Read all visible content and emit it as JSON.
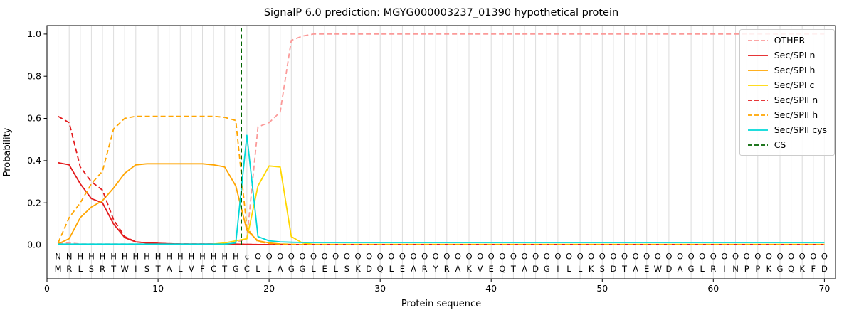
{
  "chart_data": {
    "type": "line",
    "title": "SignalP 6.0 prediction: MGYG000003237_01390 hypothetical protein",
    "xlabel": "Protein sequence",
    "ylabel": "Probability",
    "xlim": [
      0,
      71
    ],
    "ylim": [
      -0.16,
      1.04
    ],
    "xticks": [
      0,
      10,
      20,
      30,
      40,
      50,
      60,
      70
    ],
    "yticks": [
      0.0,
      0.2,
      0.4,
      0.6,
      0.8,
      1.0
    ],
    "grid": "vertical-per-residue",
    "grid_color": "#dcdcdc",
    "legend_position": "upper-right",
    "sequence": "MRLSRTWISTALVFCTGCLLAGGLELSKDQLEARYRAKVEQTADGILLKSDTAEWDAGLRINPPKGQKFD",
    "sequence_color": "#1a1a1a",
    "sequence_y": -0.112,
    "region_annotation": "NNHHHHHHHHHHHHHHHcOOOOOOOOOOOOOOOOOOOOOOOOOOOOOOOOOOOOOOOOOOOOOOOOOOOO",
    "annotation_y": -0.053,
    "annotation_colors": {
      "N": "#e31a1c",
      "H": "#ffa500",
      "c": "#00d8d8",
      "O": "#a0a0a0"
    },
    "cs": {
      "label": "CS",
      "position": 17.5,
      "color": "#006400"
    },
    "series": [
      {
        "name": "OTHER",
        "color": "#fb9a99",
        "dash": true,
        "values": [
          0.01,
          0.01,
          0.005,
          0.005,
          0.005,
          0.005,
          0.005,
          0.005,
          0.005,
          0.005,
          0.005,
          0.005,
          0.005,
          0.005,
          0.005,
          0.005,
          0.01,
          0.03,
          0.56,
          0.58,
          0.63,
          0.97,
          0.99,
          1.0,
          1.0,
          1.0,
          1.0,
          1.0,
          1.0,
          1.0,
          1.0,
          1.0,
          1.0,
          1.0,
          1.0,
          1.0,
          1.0,
          1.0,
          1.0,
          1.0,
          1.0,
          1.0,
          1.0,
          1.0,
          1.0,
          1.0,
          1.0,
          1.0,
          1.0,
          1.0,
          1.0,
          1.0,
          1.0,
          1.0,
          1.0,
          1.0,
          1.0,
          1.0,
          1.0,
          1.0,
          1.0,
          1.0,
          1.0,
          1.0,
          1.0,
          1.0,
          1.0,
          1.0,
          1.0,
          1.0
        ]
      },
      {
        "name": "Sec/SPI n",
        "color": "#e31a1c",
        "dash": false,
        "values": [
          0.39,
          0.38,
          0.29,
          0.22,
          0.2,
          0.1,
          0.035,
          0.015,
          0.01,
          0.008,
          0.006,
          0.005,
          0.005,
          0.005,
          0.005,
          0.005,
          0.004,
          0.003,
          0.002,
          0.002,
          0.002,
          0.002,
          0.002,
          0.002,
          0.002,
          0.002,
          0.002,
          0.002,
          0.002,
          0.002,
          0.002,
          0.002,
          0.002,
          0.002,
          0.002,
          0.002,
          0.002,
          0.002,
          0.002,
          0.002,
          0.002,
          0.002,
          0.002,
          0.002,
          0.002,
          0.002,
          0.002,
          0.002,
          0.002,
          0.002,
          0.002,
          0.002,
          0.002,
          0.002,
          0.002,
          0.002,
          0.002,
          0.002,
          0.002,
          0.002,
          0.002,
          0.002,
          0.002,
          0.002,
          0.002,
          0.002,
          0.002,
          0.002,
          0.002,
          0.002
        ]
      },
      {
        "name": "Sec/SPI h",
        "color": "#ffa500",
        "dash": false,
        "values": [
          0.005,
          0.03,
          0.13,
          0.18,
          0.21,
          0.27,
          0.34,
          0.38,
          0.385,
          0.385,
          0.385,
          0.385,
          0.385,
          0.385,
          0.38,
          0.37,
          0.28,
          0.07,
          0.02,
          0.01,
          0.005,
          0.003,
          0.002,
          0.002,
          0.002,
          0.002,
          0.002,
          0.002,
          0.002,
          0.002,
          0.002,
          0.002,
          0.002,
          0.002,
          0.002,
          0.002,
          0.002,
          0.002,
          0.002,
          0.002,
          0.002,
          0.002,
          0.002,
          0.002,
          0.002,
          0.002,
          0.002,
          0.002,
          0.002,
          0.002,
          0.002,
          0.002,
          0.002,
          0.002,
          0.002,
          0.002,
          0.002,
          0.002,
          0.002,
          0.002,
          0.002,
          0.002,
          0.002,
          0.002,
          0.002,
          0.002,
          0.002,
          0.002,
          0.002,
          0.002
        ]
      },
      {
        "name": "Sec/SPI c",
        "color": "#ffd700",
        "dash": false,
        "values": [
          0.003,
          0.003,
          0.003,
          0.003,
          0.003,
          0.003,
          0.003,
          0.003,
          0.003,
          0.003,
          0.003,
          0.003,
          0.003,
          0.003,
          0.005,
          0.01,
          0.02,
          0.03,
          0.28,
          0.375,
          0.37,
          0.04,
          0.01,
          0.003,
          0.003,
          0.003,
          0.003,
          0.003,
          0.003,
          0.003,
          0.003,
          0.003,
          0.003,
          0.003,
          0.003,
          0.003,
          0.003,
          0.003,
          0.003,
          0.003,
          0.003,
          0.003,
          0.003,
          0.003,
          0.003,
          0.003,
          0.003,
          0.003,
          0.003,
          0.003,
          0.003,
          0.003,
          0.003,
          0.003,
          0.003,
          0.003,
          0.003,
          0.003,
          0.003,
          0.003,
          0.003,
          0.003,
          0.003,
          0.003,
          0.003,
          0.003,
          0.003,
          0.003,
          0.003,
          0.003
        ]
      },
      {
        "name": "Sec/SPII n",
        "color": "#e31a1c",
        "dash": true,
        "values": [
          0.61,
          0.58,
          0.37,
          0.3,
          0.26,
          0.12,
          0.04,
          0.015,
          0.01,
          0.008,
          0.006,
          0.005,
          0.004,
          0.004,
          0.004,
          0.004,
          0.003,
          0.003,
          0.002,
          0.002,
          0.002,
          0.002,
          0.002,
          0.002,
          0.002,
          0.002,
          0.002,
          0.002,
          0.002,
          0.002,
          0.002,
          0.002,
          0.002,
          0.002,
          0.002,
          0.002,
          0.002,
          0.002,
          0.002,
          0.002,
          0.002,
          0.002,
          0.002,
          0.002,
          0.002,
          0.002,
          0.002,
          0.002,
          0.002,
          0.002,
          0.002,
          0.002,
          0.002,
          0.002,
          0.002,
          0.002,
          0.002,
          0.002,
          0.002,
          0.002,
          0.002,
          0.002,
          0.002,
          0.002,
          0.002,
          0.002,
          0.002,
          0.002,
          0.002,
          0.002
        ]
      },
      {
        "name": "Sec/SPII h",
        "color": "#ffa500",
        "dash": true,
        "values": [
          0.01,
          0.13,
          0.2,
          0.29,
          0.35,
          0.55,
          0.6,
          0.61,
          0.61,
          0.61,
          0.61,
          0.61,
          0.61,
          0.61,
          0.61,
          0.605,
          0.59,
          0.08,
          0.015,
          0.008,
          0.005,
          0.003,
          0.002,
          0.002,
          0.002,
          0.002,
          0.002,
          0.002,
          0.002,
          0.002,
          0.002,
          0.002,
          0.002,
          0.002,
          0.002,
          0.002,
          0.002,
          0.002,
          0.002,
          0.002,
          0.002,
          0.002,
          0.002,
          0.002,
          0.002,
          0.002,
          0.002,
          0.002,
          0.002,
          0.002,
          0.002,
          0.002,
          0.002,
          0.002,
          0.002,
          0.002,
          0.002,
          0.002,
          0.002,
          0.002,
          0.002,
          0.002,
          0.002,
          0.002,
          0.002,
          0.002,
          0.002,
          0.002,
          0.002,
          0.002
        ]
      },
      {
        "name": "Sec/SPII cys",
        "color": "#00d8d8",
        "dash": false,
        "values": [
          0.004,
          0.004,
          0.004,
          0.004,
          0.004,
          0.004,
          0.004,
          0.004,
          0.004,
          0.004,
          0.004,
          0.004,
          0.004,
          0.004,
          0.004,
          0.004,
          0.01,
          0.52,
          0.04,
          0.02,
          0.015,
          0.013,
          0.012,
          0.012,
          0.012,
          0.012,
          0.012,
          0.012,
          0.012,
          0.012,
          0.012,
          0.012,
          0.012,
          0.012,
          0.012,
          0.012,
          0.012,
          0.012,
          0.012,
          0.012,
          0.012,
          0.012,
          0.012,
          0.012,
          0.012,
          0.012,
          0.012,
          0.012,
          0.012,
          0.012,
          0.012,
          0.012,
          0.012,
          0.012,
          0.012,
          0.012,
          0.012,
          0.012,
          0.012,
          0.012,
          0.012,
          0.012,
          0.012,
          0.012,
          0.012,
          0.012,
          0.012,
          0.012,
          0.012,
          0.012
        ]
      }
    ]
  }
}
